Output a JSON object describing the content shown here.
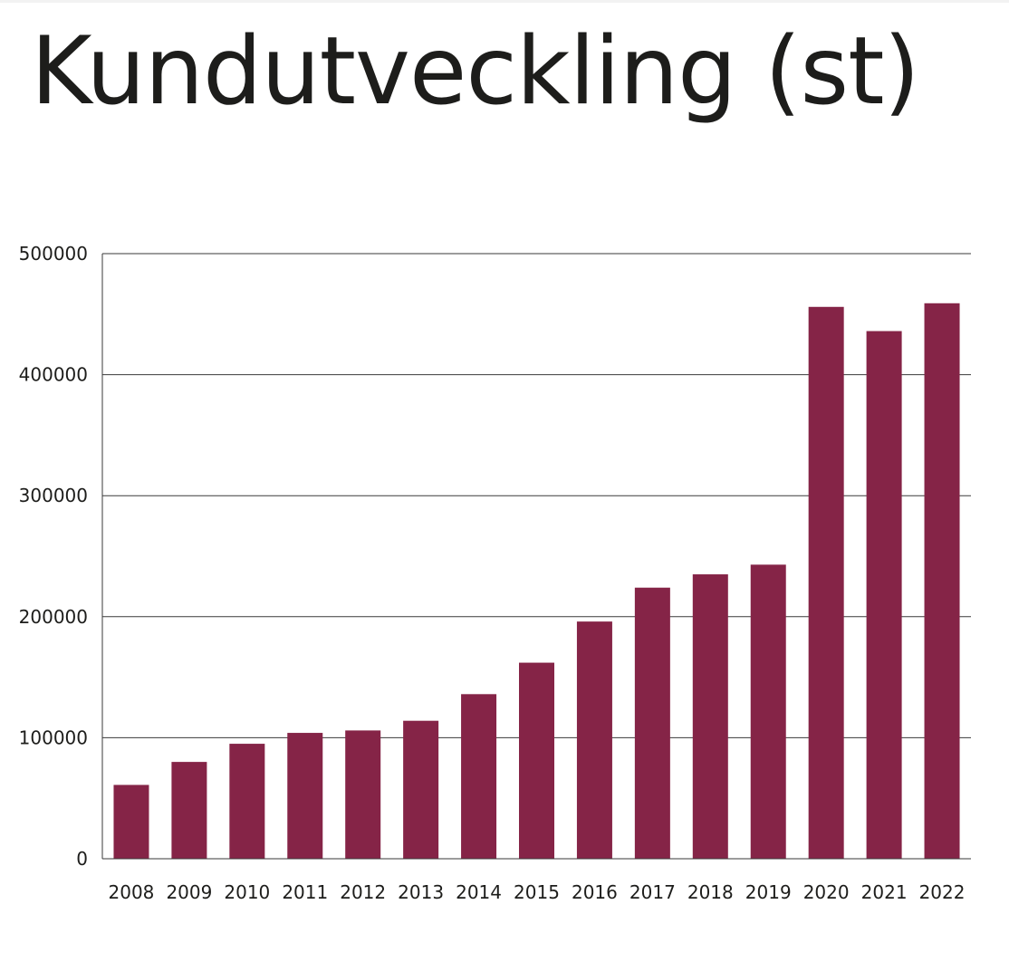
{
  "chart_data": {
    "type": "bar",
    "title": "Kundutveckling (st)",
    "xlabel": "",
    "ylabel": "",
    "categories": [
      "2008",
      "2009",
      "2010",
      "2011",
      "2012",
      "2013",
      "2014",
      "2015",
      "2016",
      "2017",
      "2018",
      "2019",
      "2020",
      "2021",
      "2022"
    ],
    "values": [
      61000,
      80000,
      95000,
      104000,
      106000,
      114000,
      136000,
      162000,
      196000,
      224000,
      235000,
      243000,
      456000,
      436000,
      459000
    ],
    "ylim": [
      0,
      500000
    ],
    "yticks": [
      "0",
      "100000",
      "200000",
      "300000",
      "400000",
      "500000"
    ],
    "grid": "horizontal",
    "bar_color": "#852447",
    "grid_color": "#3a3a3a"
  }
}
